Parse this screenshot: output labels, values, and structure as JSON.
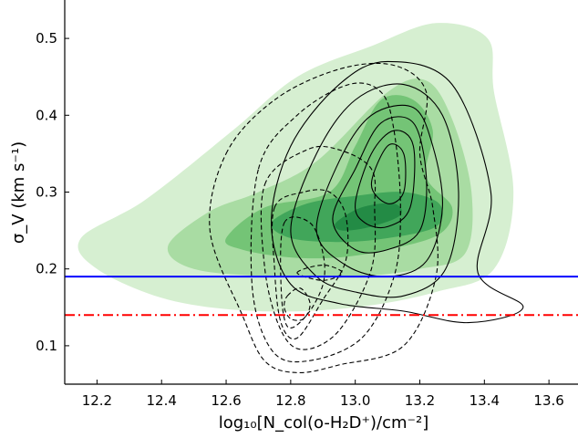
{
  "chart_data": {
    "type": "contour",
    "xlabel": "log₁₀[N_col(o-H₂D⁺)/cm⁻²]",
    "ylabel": "σ_V (km s⁻¹)",
    "xlim": [
      12.1,
      13.69
    ],
    "ylim": [
      0.05,
      0.55
    ],
    "xticks": [
      "12.2",
      "12.4",
      "12.6",
      "12.8",
      "13.0",
      "13.2",
      "13.4",
      "13.6"
    ],
    "yticks": [
      "0.1",
      "0.2",
      "0.3",
      "0.4",
      "0.5"
    ],
    "grid": false,
    "colors": {
      "fill_levels": [
        "#d6efd1",
        "#a9dca3",
        "#74c476",
        "#41a65a",
        "#238b45"
      ],
      "solid_line": "#0000ff",
      "dashdot_line": "#ff0000",
      "contour_line": "#000000"
    },
    "reference_lines": [
      {
        "style": "solid",
        "color": "blue",
        "y": 0.19
      },
      {
        "style": "dashdot",
        "color": "red",
        "y": 0.14
      }
    ],
    "filled_contours": [
      {
        "level": 1,
        "points": [
          [
            12.15,
            0.24
          ],
          [
            12.35,
            0.29
          ],
          [
            12.62,
            0.38
          ],
          [
            12.82,
            0.45
          ],
          [
            13.05,
            0.49
          ],
          [
            13.25,
            0.52
          ],
          [
            13.41,
            0.5
          ],
          [
            13.43,
            0.43
          ],
          [
            13.49,
            0.3
          ],
          [
            13.43,
            0.2
          ],
          [
            13.25,
            0.17
          ],
          [
            13.0,
            0.15
          ],
          [
            12.7,
            0.145
          ],
          [
            12.42,
            0.16
          ],
          [
            12.2,
            0.2
          ]
        ]
      },
      {
        "level": 2,
        "points": [
          [
            12.42,
            0.23
          ],
          [
            12.55,
            0.275
          ],
          [
            12.7,
            0.3
          ],
          [
            12.88,
            0.34
          ],
          [
            13.1,
            0.43
          ],
          [
            13.22,
            0.445
          ],
          [
            13.3,
            0.395
          ],
          [
            13.36,
            0.3
          ],
          [
            13.34,
            0.22
          ],
          [
            13.2,
            0.2
          ],
          [
            13.0,
            0.19
          ],
          [
            12.75,
            0.19
          ],
          [
            12.5,
            0.2
          ]
        ]
      },
      {
        "level": 3,
        "points": [
          [
            12.6,
            0.24
          ],
          [
            12.72,
            0.28
          ],
          [
            12.92,
            0.3
          ],
          [
            13.0,
            0.36
          ],
          [
            13.08,
            0.42
          ],
          [
            13.18,
            0.42
          ],
          [
            13.24,
            0.38
          ],
          [
            13.22,
            0.32
          ],
          [
            13.3,
            0.28
          ],
          [
            13.26,
            0.245
          ],
          [
            13.1,
            0.225
          ],
          [
            12.95,
            0.215
          ],
          [
            12.8,
            0.215
          ],
          [
            12.65,
            0.225
          ]
        ]
      },
      {
        "level": 4,
        "points": [
          [
            12.74,
            0.26
          ],
          [
            12.85,
            0.285
          ],
          [
            13.0,
            0.295
          ],
          [
            13.15,
            0.3
          ],
          [
            13.26,
            0.285
          ],
          [
            13.25,
            0.255
          ],
          [
            13.1,
            0.24
          ],
          [
            12.95,
            0.235
          ],
          [
            12.8,
            0.24
          ]
        ]
      },
      {
        "level": 5,
        "points": [
          [
            12.94,
            0.26
          ],
          [
            13.02,
            0.28
          ],
          [
            13.12,
            0.285
          ],
          [
            13.14,
            0.27
          ],
          [
            13.05,
            0.255
          ],
          [
            12.96,
            0.25
          ]
        ]
      }
    ],
    "solid_contours": [
      {
        "points": [
          [
            12.74,
            0.26
          ],
          [
            12.8,
            0.36
          ],
          [
            12.95,
            0.44
          ],
          [
            13.1,
            0.47
          ],
          [
            13.3,
            0.44
          ],
          [
            13.42,
            0.3
          ],
          [
            13.38,
            0.195
          ],
          [
            13.52,
            0.15
          ],
          [
            13.35,
            0.13
          ],
          [
            13.15,
            0.145
          ],
          [
            12.95,
            0.155
          ],
          [
            12.8,
            0.18
          ]
        ]
      },
      {
        "points": [
          [
            12.8,
            0.25
          ],
          [
            12.88,
            0.35
          ],
          [
            13.0,
            0.42
          ],
          [
            13.15,
            0.44
          ],
          [
            13.27,
            0.4
          ],
          [
            13.32,
            0.3
          ],
          [
            13.28,
            0.2
          ],
          [
            13.15,
            0.165
          ],
          [
            13.0,
            0.17
          ],
          [
            12.88,
            0.19
          ]
        ]
      },
      {
        "points": [
          [
            12.88,
            0.25
          ],
          [
            12.95,
            0.34
          ],
          [
            13.05,
            0.4
          ],
          [
            13.18,
            0.41
          ],
          [
            13.24,
            0.36
          ],
          [
            13.27,
            0.28
          ],
          [
            13.22,
            0.21
          ],
          [
            13.1,
            0.19
          ],
          [
            12.97,
            0.205
          ]
        ]
      },
      {
        "points": [
          [
            12.93,
            0.265
          ],
          [
            13.0,
            0.33
          ],
          [
            13.08,
            0.39
          ],
          [
            13.18,
            0.39
          ],
          [
            13.22,
            0.32
          ],
          [
            13.2,
            0.25
          ],
          [
            13.1,
            0.225
          ],
          [
            13.0,
            0.225
          ]
        ]
      },
      {
        "points": [
          [
            13.0,
            0.285
          ],
          [
            13.05,
            0.35
          ],
          [
            13.12,
            0.38
          ],
          [
            13.18,
            0.36
          ],
          [
            13.17,
            0.28
          ],
          [
            13.1,
            0.255
          ],
          [
            13.03,
            0.26
          ]
        ]
      },
      {
        "points": [
          [
            13.05,
            0.31
          ],
          [
            13.1,
            0.36
          ],
          [
            13.15,
            0.35
          ],
          [
            13.15,
            0.3
          ],
          [
            13.1,
            0.285
          ]
        ]
      }
    ],
    "dashed_contours": [
      {
        "points": [
          [
            12.6,
            0.35
          ],
          [
            12.75,
            0.42
          ],
          [
            12.95,
            0.46
          ],
          [
            13.12,
            0.465
          ],
          [
            13.22,
            0.43
          ],
          [
            13.2,
            0.35
          ],
          [
            13.24,
            0.28
          ],
          [
            13.25,
            0.19
          ],
          [
            13.15,
            0.1
          ],
          [
            12.95,
            0.075
          ],
          [
            12.82,
            0.065
          ],
          [
            12.72,
            0.08
          ],
          [
            12.65,
            0.14
          ],
          [
            12.55,
            0.25
          ]
        ]
      },
      {
        "points": [
          [
            12.7,
            0.33
          ],
          [
            12.82,
            0.4
          ],
          [
            12.98,
            0.44
          ],
          [
            13.08,
            0.43
          ],
          [
            13.12,
            0.38
          ],
          [
            13.14,
            0.28
          ],
          [
            13.12,
            0.19
          ],
          [
            13.02,
            0.11
          ],
          [
            12.85,
            0.08
          ],
          [
            12.74,
            0.095
          ],
          [
            12.68,
            0.18
          ]
        ]
      },
      {
        "points": [
          [
            12.72,
            0.31
          ],
          [
            12.85,
            0.355
          ],
          [
            12.95,
            0.355
          ],
          [
            13.05,
            0.33
          ],
          [
            13.06,
            0.28
          ],
          [
            13.05,
            0.2
          ],
          [
            12.95,
            0.12
          ],
          [
            12.84,
            0.095
          ],
          [
            12.77,
            0.12
          ],
          [
            12.72,
            0.2
          ]
        ]
      },
      {
        "points": [
          [
            12.75,
            0.28
          ],
          [
            12.84,
            0.3
          ],
          [
            12.92,
            0.3
          ],
          [
            12.97,
            0.27
          ],
          [
            12.97,
            0.21
          ],
          [
            12.9,
            0.16
          ],
          [
            12.82,
            0.11
          ],
          [
            12.77,
            0.13
          ],
          [
            12.75,
            0.2
          ]
        ]
      },
      {
        "points": [
          [
            12.78,
            0.26
          ],
          [
            12.86,
            0.26
          ],
          [
            12.9,
            0.22
          ],
          [
            12.9,
            0.18
          ],
          [
            12.85,
            0.14
          ],
          [
            12.79,
            0.125
          ],
          [
            12.77,
            0.18
          ]
        ]
      },
      {
        "points": [
          [
            12.79,
            0.165
          ],
          [
            12.83,
            0.175
          ],
          [
            12.86,
            0.155
          ],
          [
            12.84,
            0.135
          ],
          [
            12.8,
            0.135
          ],
          [
            12.78,
            0.15
          ]
        ]
      },
      {
        "points": [
          [
            12.82,
            0.195
          ],
          [
            12.9,
            0.205
          ],
          [
            12.96,
            0.195
          ],
          [
            12.9,
            0.185
          ]
        ]
      }
    ]
  }
}
